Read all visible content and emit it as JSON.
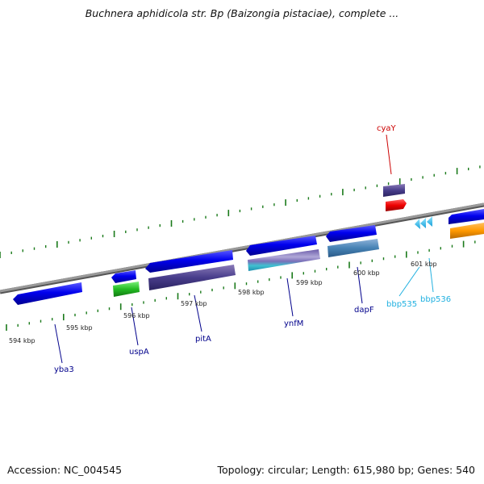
{
  "title": "Buchnera aphidicola str. Bp (Baizongia pistaciae), complete ...",
  "footer": {
    "accession": "Accession: NC_004545",
    "summary": "Topology: circular; Length: 615,980 bp; Genes: 540"
  },
  "colors": {
    "backbone": "#888888",
    "tick": "#1a7a1a",
    "label_dark": "#00008b",
    "label_red": "#cc0000",
    "label_cyan": "#20b0e0"
  },
  "scale_labels": [
    "594 kbp",
    "595 kbp",
    "596 kbp",
    "597 kbp",
    "598 kbp",
    "599 kbp",
    "600 kbp",
    "601 kbp"
  ],
  "genes": [
    {
      "name": "yba3",
      "color": "#00008b"
    },
    {
      "name": "uspA",
      "color": "#00008b"
    },
    {
      "name": "pitA",
      "color": "#00008b"
    },
    {
      "name": "ynfM",
      "color": "#00008b"
    },
    {
      "name": "dapF",
      "color": "#00008b"
    },
    {
      "name": "bbp535",
      "color": "#20b0e0"
    },
    {
      "name": "bbp536",
      "color": "#20b0e0"
    },
    {
      "name": "cyaY",
      "color": "#cc0000"
    }
  ]
}
